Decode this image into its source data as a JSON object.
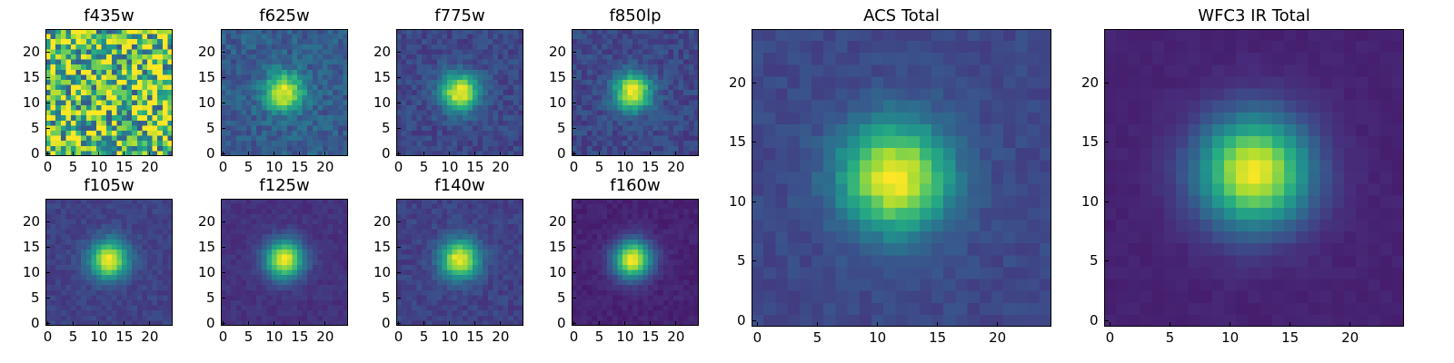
{
  "chart_data": [
    {
      "type": "heatmap",
      "title": "f435w",
      "colormap": "viridis",
      "xlim": [
        0,
        24
      ],
      "ylim": [
        0,
        24
      ],
      "xticks": [
        0,
        5,
        10,
        15,
        20
      ],
      "yticks": [
        0,
        5,
        10,
        15,
        20
      ],
      "source_center": [
        12,
        12
      ],
      "peak_relative": 0.0,
      "noise_relative": 1.0,
      "background_level": 0.72
    },
    {
      "type": "heatmap",
      "title": "f625w",
      "colormap": "viridis",
      "xlim": [
        0,
        24
      ],
      "ylim": [
        0,
        24
      ],
      "xticks": [
        0,
        5,
        10,
        15,
        20
      ],
      "yticks": [
        0,
        5,
        10,
        15,
        20
      ],
      "source_center": [
        12,
        12
      ],
      "peak_relative": 1.0,
      "noise_relative": 0.38,
      "background_level": 0.3
    },
    {
      "type": "heatmap",
      "title": "f775w",
      "colormap": "viridis",
      "xlim": [
        0,
        24
      ],
      "ylim": [
        0,
        24
      ],
      "xticks": [
        0,
        5,
        10,
        15,
        20
      ],
      "yticks": [
        0,
        5,
        10,
        15,
        20
      ],
      "source_center": [
        12,
        12
      ],
      "peak_relative": 1.0,
      "noise_relative": 0.28,
      "background_level": 0.22
    },
    {
      "type": "heatmap",
      "title": "f850lp",
      "colormap": "viridis",
      "xlim": [
        0,
        24
      ],
      "ylim": [
        0,
        24
      ],
      "xticks": [
        0,
        5,
        10,
        15,
        20
      ],
      "yticks": [
        0,
        5,
        10,
        15,
        20
      ],
      "source_center": [
        11.5,
        12
      ],
      "peak_relative": 1.0,
      "noise_relative": 0.3,
      "background_level": 0.22
    },
    {
      "type": "heatmap",
      "title": "f105w",
      "colormap": "viridis",
      "xlim": [
        0,
        24
      ],
      "ylim": [
        0,
        24
      ],
      "xticks": [
        0,
        5,
        10,
        15,
        20
      ],
      "yticks": [
        0,
        5,
        10,
        15,
        20
      ],
      "source_center": [
        12,
        12.5
      ],
      "peak_relative": 1.0,
      "noise_relative": 0.18,
      "background_level": 0.2
    },
    {
      "type": "heatmap",
      "title": "f125w",
      "colormap": "viridis",
      "xlim": [
        0,
        24
      ],
      "ylim": [
        0,
        24
      ],
      "xticks": [
        0,
        5,
        10,
        15,
        20
      ],
      "yticks": [
        0,
        5,
        10,
        15,
        20
      ],
      "source_center": [
        12,
        12.5
      ],
      "peak_relative": 1.0,
      "noise_relative": 0.14,
      "background_level": 0.15
    },
    {
      "type": "heatmap",
      "title": "f140w",
      "colormap": "viridis",
      "xlim": [
        0,
        24
      ],
      "ylim": [
        0,
        24
      ],
      "xticks": [
        0,
        5,
        10,
        15,
        20
      ],
      "yticks": [
        0,
        5,
        10,
        15,
        20
      ],
      "source_center": [
        12,
        12.5
      ],
      "peak_relative": 1.0,
      "noise_relative": 0.2,
      "background_level": 0.2
    },
    {
      "type": "heatmap",
      "title": "f160w",
      "colormap": "viridis",
      "xlim": [
        0,
        24
      ],
      "ylim": [
        0,
        24
      ],
      "xticks": [
        0,
        5,
        10,
        15,
        20
      ],
      "yticks": [
        0,
        5,
        10,
        15,
        20
      ],
      "source_center": [
        11.5,
        12.5
      ],
      "peak_relative": 1.0,
      "noise_relative": 0.12,
      "background_level": 0.1
    },
    {
      "type": "heatmap",
      "title": "ACS Total",
      "colormap": "viridis",
      "xlim": [
        0,
        24
      ],
      "ylim": [
        0,
        24
      ],
      "xticks": [
        0,
        5,
        10,
        15,
        20
      ],
      "yticks": [
        0,
        5,
        10,
        15,
        20
      ],
      "source_center": [
        11.5,
        12
      ],
      "peak_relative": 1.0,
      "noise_relative": 0.16,
      "background_level": 0.22
    },
    {
      "type": "heatmap",
      "title": "WFC3 IR Total",
      "colormap": "viridis",
      "xlim": [
        0,
        24
      ],
      "ylim": [
        0,
        24
      ],
      "xticks": [
        0,
        5,
        10,
        15,
        20
      ],
      "yticks": [
        0,
        5,
        10,
        15,
        20
      ],
      "source_center": [
        12,
        12.5
      ],
      "peak_relative": 1.0,
      "noise_relative": 0.06,
      "background_level": 0.1
    }
  ]
}
